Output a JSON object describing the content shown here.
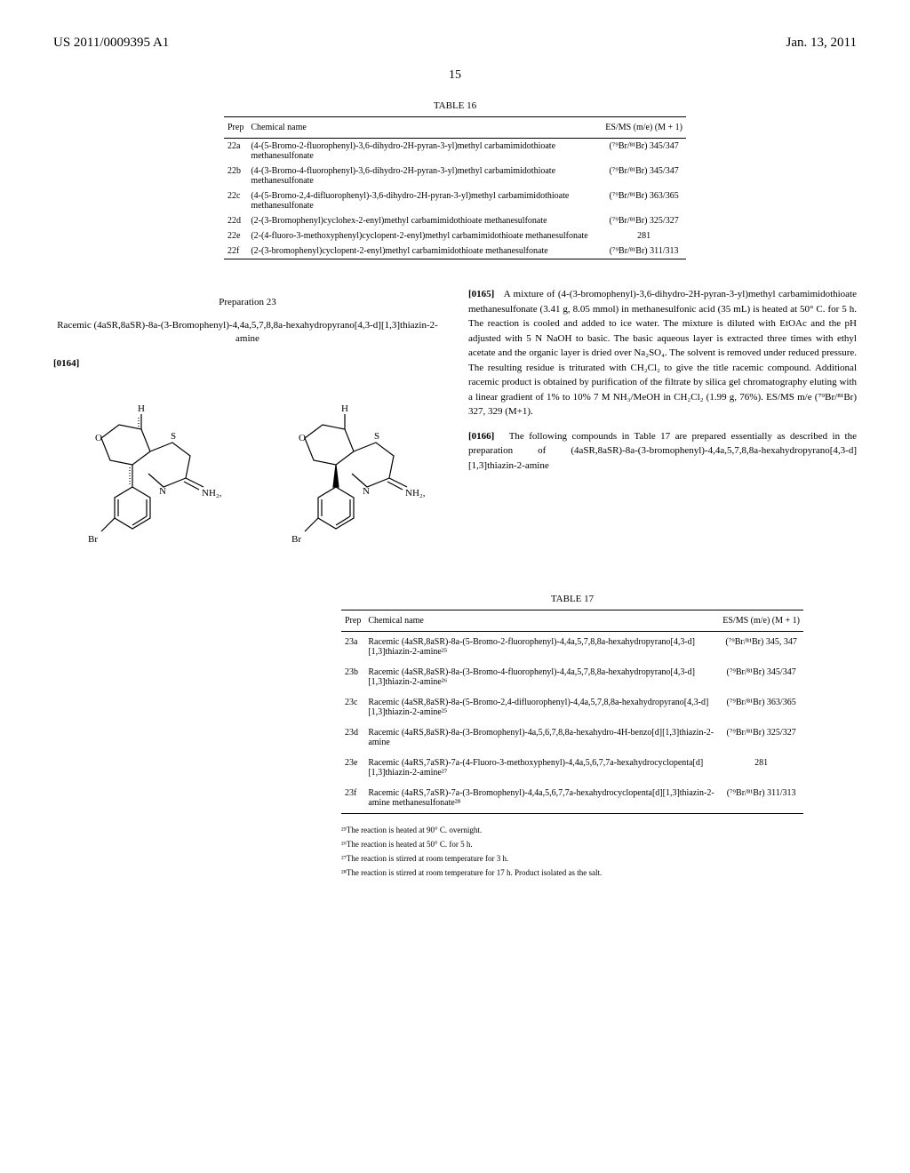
{
  "header": {
    "left": "US 2011/0009395 A1",
    "right": "Jan. 13, 2011"
  },
  "pageNumber": "15",
  "table16": {
    "caption": "TABLE 16",
    "columns": [
      "Prep",
      "Chemical name",
      "ES/MS (m/e) (M + 1)"
    ],
    "rows": [
      [
        "22a",
        "(4-(5-Bromo-2-fluorophenyl)-3,6-dihydro-2H-pyran-3-yl)methyl carbamimidothioate methanesulfonate",
        "(⁷⁹Br/⁸¹Br) 345/347"
      ],
      [
        "22b",
        "(4-(3-Bromo-4-fluorophenyl)-3,6-dihydro-2H-pyran-3-yl)methyl carbamimidothioate methanesulfonate",
        "(⁷⁹Br/⁸¹Br) 345/347"
      ],
      [
        "22c",
        "(4-(5-Bromo-2,4-difluorophenyl)-3,6-dihydro-2H-pyran-3-yl)methyl carbamimidothioate methanesulfonate",
        "(⁷⁹Br/⁸¹Br) 363/365"
      ],
      [
        "22d",
        "(2-(3-Bromophenyl)cyclohex-2-enyl)methyl carbamimidothioate methanesulfonate",
        "(⁷⁹Br/⁸¹Br) 325/327"
      ],
      [
        "22e",
        "(2-(4-fluoro-3-methoxyphenyl)cyclopent-2-enyl)methyl carbamimidothioate methanesulfonate",
        "281"
      ],
      [
        "22f",
        "(2-(3-bromophenyl)cyclopent-2-enyl)methyl carbamimidothioate methanesulfonate",
        "(⁷⁹Br/⁸¹Br) 311/313"
      ]
    ]
  },
  "prep23": {
    "title": "Preparation 23",
    "subtitle": "Racemic (4aSR,8aSR)-8a-(3-Bromophenyl)-4,4a,5,7,8,8a-hexahydropyrano[4,3-d][1,3]thiazin-2-amine",
    "paraNum1": "[0164]"
  },
  "bodyText": {
    "para165_num": "[0165]",
    "para165": "A mixture of (4-(3-bromophenyl)-3,6-dihydro-2H-pyran-3-yl)methyl carbamimidothioate methanesulfonate (3.41 g, 8.05 mmol) in methanesulfonic acid (35 mL) is heated at 50° C. for 5 h. The reaction is cooled and added to ice water. The mixture is diluted with EtOAc and the pH adjusted with 5 N NaOH to basic. The basic aqueous layer is extracted three times with ethyl acetate and the organic layer is dried over Na₂SO₄. The solvent is removed under reduced pressure. The resulting residue is triturated with CH₂Cl₂ to give the title racemic compound. Additional racemic product is obtained by purification of the filtrate by silica gel chromatography eluting with a linear gradient of 1% to 10% 7 M NH₃/MeOH in CH₂Cl₂ (1.99 g, 76%). ES/MS m/e (⁷⁹Br/⁸¹Br) 327, 329 (M+1).",
    "para166_num": "[0166]",
    "para166": "The following compounds in Table 17 are prepared essentially as described in the preparation of (4aSR,8aSR)-8a-(3-bromophenyl)-4,4a,5,7,8,8a-hexahydropyrano[4,3-d][1,3]thiazin-2-amine"
  },
  "table17": {
    "caption": "TABLE 17",
    "columns": [
      "Prep",
      "Chemical name",
      "ES/MS (m/e) (M + 1)"
    ],
    "rows": [
      [
        "23a",
        "Racemic (4aSR,8aSR)-8a-(5-Bromo-2-fluorophenyl)-4,4a,5,7,8,8a-hexahydropyrano[4,3-d][1,3]thiazin-2-amine²⁵",
        "(⁷⁹Br/⁸¹Br) 345, 347"
      ],
      [
        "23b",
        "Racemic (4aSR,8aSR)-8a-(3-Bromo-4-fluorophenyl)-4,4a,5,7,8,8a-hexahydropyrano[4,3-d][1,3]thiazin-2-amine²⁶",
        "(⁷⁹Br/⁸¹Br) 345/347"
      ],
      [
        "23c",
        "Racemic (4aSR,8aSR)-8a-(5-Bromo-2,4-difluorophenyl)-4,4a,5,7,8,8a-hexahydropyrano[4,3-d][1,3]thiazin-2-amine²⁵",
        "(⁷⁹Br/⁸¹Br) 363/365"
      ],
      [
        "23d",
        "Racemic (4aRS,8aSR)-8a-(3-Bromophenyl)-4a,5,6,7,8,8a-hexahydro-4H-benzo[d][1,3]thiazin-2-amine",
        "(⁷⁹Br/⁸¹Br) 325/327"
      ],
      [
        "23e",
        "Racemic (4aRS,7aSR)-7a-(4-Fluoro-3-methoxyphenyl)-4,4a,5,6,7,7a-hexahydrocyclopenta[d][1,3]thiazin-2-amine²⁷",
        "281"
      ],
      [
        "23f",
        "Racemic (4aRS,7aSR)-7a-(3-Bromophenyl)-4,4a,5,6,7,7a-hexahydrocyclopenta[d][1,3]thiazin-2-amine methanesulfonate²⁸",
        "(⁷⁹Br/⁸¹Br) 311/313"
      ]
    ]
  },
  "footnotes": [
    "²⁵The reaction is heated at 90° C. overnight.",
    "²⁶The reaction is heated at 50° C. for 5 h.",
    "²⁷The reaction is stirred at room temperature for 3 h.",
    "²⁸The reaction is stirred at room temperature for 17 h. Product isolated as the salt."
  ],
  "chemStructures": {
    "labelO": "O",
    "labelS": "S",
    "labelN": "N",
    "labelH": "H",
    "labelNH2": "NH₂,",
    "labelBr": "Br"
  }
}
